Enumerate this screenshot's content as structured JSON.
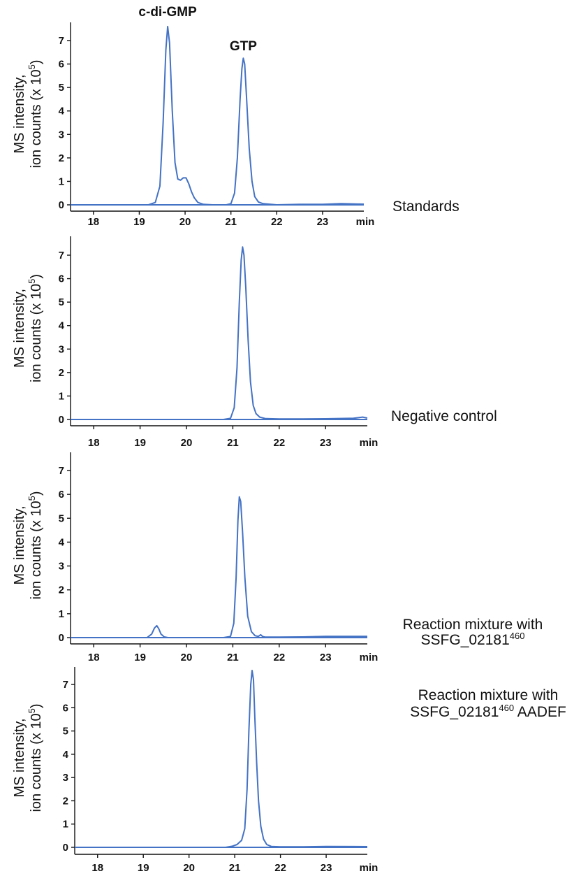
{
  "chart_data": [
    {
      "type": "line",
      "condition_label": [
        "Standards"
      ],
      "ylabel_line1": "MS intensity,",
      "ylabel_line2": "ion counts (x 10",
      "ylabel_exp": "5",
      "ylabel_close": ")",
      "xunit": "min",
      "xticks": [
        "18",
        "19",
        "20",
        "21",
        "22",
        "23"
      ],
      "yticks": [
        "0",
        "1",
        "2",
        "3",
        "4",
        "5",
        "6",
        "7"
      ],
      "xlim": [
        17.5,
        23.9
      ],
      "ylim": [
        -0.2,
        7.7
      ],
      "peak_labels": [
        {
          "text": "c-di-GMP",
          "x": 19.62
        },
        {
          "text": "GTP",
          "x": 21.27
        }
      ],
      "series": [
        {
          "x": [
            17.5,
            19.2,
            19.35,
            19.45,
            19.52,
            19.58,
            19.62,
            19.66,
            19.72,
            19.78,
            19.84,
            19.9,
            19.96,
            20.02,
            20.08,
            20.14,
            20.2,
            20.28,
            20.4,
            20.6,
            20.9,
            21.0,
            21.08,
            21.14,
            21.2,
            21.24,
            21.27,
            21.3,
            21.34,
            21.4,
            21.46,
            21.52,
            21.6,
            21.7,
            22.0,
            22.5,
            23.0,
            23.4,
            23.9
          ],
          "y": [
            0,
            0,
            0.1,
            0.8,
            3.5,
            6.6,
            7.6,
            6.9,
            4.0,
            1.8,
            1.1,
            1.05,
            1.15,
            1.15,
            0.9,
            0.55,
            0.3,
            0.1,
            0.02,
            0,
            0,
            0.05,
            0.5,
            2.0,
            4.5,
            5.8,
            6.25,
            6.0,
            4.6,
            2.4,
            1.0,
            0.35,
            0.12,
            0.05,
            0,
            0.02,
            0.02,
            0.05,
            0.03
          ]
        },
        {
          "x": [
            17.5,
            23.9
          ],
          "y": [
            0,
            0
          ]
        }
      ]
    },
    {
      "type": "line",
      "condition_label": [
        "Negative control"
      ],
      "ylabel_line1": "MS intensity,",
      "ylabel_line2": "ion counts (x 10",
      "ylabel_exp": "5",
      "ylabel_close": ")",
      "xunit": "min",
      "xticks": [
        "18",
        "19",
        "20",
        "21",
        "22",
        "23"
      ],
      "yticks": [
        "0",
        "1",
        "2",
        "3",
        "4",
        "5",
        "6",
        "7"
      ],
      "xlim": [
        17.5,
        23.9
      ],
      "ylim": [
        -0.2,
        7.7
      ],
      "peak_labels": [],
      "series": [
        {
          "x": [
            17.5,
            20.8,
            20.95,
            21.03,
            21.09,
            21.14,
            21.18,
            21.21,
            21.24,
            21.28,
            21.33,
            21.38,
            21.44,
            21.5,
            21.58,
            21.7,
            22.0,
            22.5,
            23.0,
            23.6,
            23.8,
            23.9
          ],
          "y": [
            0,
            0,
            0.05,
            0.5,
            2.2,
            5.0,
            6.8,
            7.35,
            7.0,
            5.6,
            3.4,
            1.6,
            0.6,
            0.25,
            0.1,
            0.04,
            0.02,
            0.02,
            0.03,
            0.05,
            0.1,
            0.06
          ]
        },
        {
          "x": [
            17.5,
            23.9
          ],
          "y": [
            0,
            0
          ]
        }
      ]
    },
    {
      "type": "line",
      "condition_label": [
        "Reaction mixture with",
        "SSFG_02181",
        "460",
        ""
      ],
      "ylabel_line1": "MS intensity,",
      "ylabel_line2": "ion counts (x 10",
      "ylabel_exp": "5",
      "ylabel_close": ")",
      "xunit": "min",
      "xticks": [
        "18",
        "19",
        "20",
        "21",
        "22",
        "23"
      ],
      "yticks": [
        "0",
        "1",
        "2",
        "3",
        "4",
        "5",
        "6",
        "7"
      ],
      "xlim": [
        17.5,
        23.9
      ],
      "ylim": [
        -0.2,
        7.7
      ],
      "peak_labels": [],
      "series": [
        {
          "x": [
            17.5,
            19.15,
            19.25,
            19.31,
            19.36,
            19.4,
            19.45,
            19.52,
            19.6,
            19.8,
            20.8,
            20.95,
            21.02,
            21.07,
            21.11,
            21.14,
            21.17,
            21.21,
            21.26,
            21.32,
            21.4,
            21.48,
            21.55,
            21.6,
            21.64,
            21.7,
            22.0,
            22.5,
            23.0,
            23.5,
            23.9
          ],
          "y": [
            0,
            0,
            0.15,
            0.4,
            0.5,
            0.38,
            0.15,
            0.03,
            0,
            0,
            0,
            0.05,
            0.6,
            2.5,
            4.9,
            5.9,
            5.7,
            4.4,
            2.5,
            0.9,
            0.25,
            0.08,
            0.05,
            0.12,
            0.05,
            0.02,
            0.02,
            0.03,
            0.05,
            0.05,
            0.05
          ]
        },
        {
          "x": [
            17.5,
            23.9
          ],
          "y": [
            0,
            0
          ]
        }
      ]
    },
    {
      "type": "line",
      "condition_label": [
        "Reaction mixture with",
        "SSFG_02181",
        "460",
        " AADEF"
      ],
      "ylabel_line1": "MS intensity,",
      "ylabel_line2": "ion counts (x 10",
      "ylabel_exp": "5",
      "ylabel_close": ")",
      "xunit": "min",
      "xticks": [
        "18",
        "19",
        "20",
        "21",
        "22",
        "23"
      ],
      "yticks": [
        "0",
        "1",
        "2",
        "3",
        "4",
        "5",
        "6",
        "7"
      ],
      "xlim": [
        17.5,
        23.9
      ],
      "ylim": [
        -0.2,
        7.7
      ],
      "peak_labels": [],
      "series": [
        {
          "x": [
            17.5,
            20.8,
            20.95,
            21.05,
            21.15,
            21.22,
            21.27,
            21.31,
            21.35,
            21.38,
            21.41,
            21.44,
            21.48,
            21.52,
            21.57,
            21.63,
            21.7,
            21.8,
            22.0,
            22.5,
            23.0,
            23.9
          ],
          "y": [
            0,
            0,
            0.05,
            0.12,
            0.3,
            0.8,
            2.5,
            5.0,
            7.0,
            7.6,
            7.2,
            5.6,
            3.6,
            2.0,
            0.9,
            0.35,
            0.12,
            0.04,
            0.02,
            0.02,
            0.04,
            0.03
          ]
        },
        {
          "x": [
            17.5,
            23.9
          ],
          "y": [
            0,
            0
          ]
        }
      ]
    }
  ]
}
